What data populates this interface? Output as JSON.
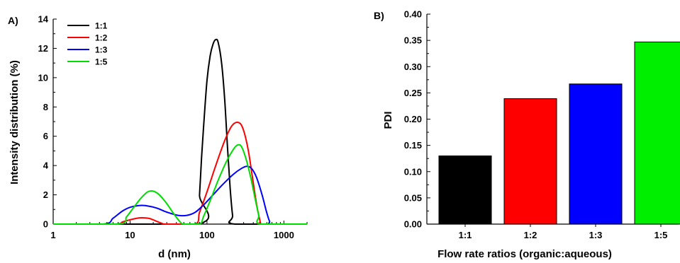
{
  "chart_data": [
    {
      "panel_label": "A)",
      "type": "line",
      "xlabel": "d (nm)",
      "ylabel": "Intensity distribution (%)",
      "xscale": "log",
      "xlim": [
        1,
        2000
      ],
      "ylim": [
        0,
        14
      ],
      "x_ticks": [
        1,
        10,
        100,
        1000
      ],
      "x_tick_labels": [
        "1",
        "10",
        "100",
        "1000"
      ],
      "y_ticks": [
        0,
        2,
        4,
        6,
        8,
        10,
        12,
        14
      ],
      "y_tick_labels": [
        "0",
        "2",
        "4",
        "6",
        "8",
        "10",
        "12",
        "14"
      ],
      "legend_position": "top-left",
      "series": [
        {
          "name": "1:1",
          "color": "#000000",
          "points": [
            [
              1,
              0
            ],
            [
              75,
              0
            ],
            [
              80,
              2.0
            ],
            [
              85,
              4.5
            ],
            [
              90,
              6.5
            ],
            [
              100,
              9.8
            ],
            [
              110,
              11.5
            ],
            [
              120,
              12.3
            ],
            [
              130,
              12.6
            ],
            [
              140,
              12.4
            ],
            [
              155,
              11.0
            ],
            [
              170,
              8.5
            ],
            [
              185,
              5.2
            ],
            [
              200,
              2.5
            ],
            [
              215,
              0.6
            ],
            [
              230,
              0
            ],
            [
              2000,
              0
            ]
          ]
        },
        {
          "name": "1:2",
          "color": "#ff0000",
          "points": [
            [
              1,
              0
            ],
            [
              6,
              0
            ],
            [
              8,
              0.15
            ],
            [
              10,
              0.3
            ],
            [
              13,
              0.42
            ],
            [
              15,
              0.43
            ],
            [
              18,
              0.38
            ],
            [
              22,
              0.2
            ],
            [
              26,
              0.05
            ],
            [
              30,
              0
            ],
            [
              70,
              0
            ],
            [
              80,
              0.8
            ],
            [
              100,
              2.2
            ],
            [
              130,
              4.0
            ],
            [
              170,
              5.7
            ],
            [
              210,
              6.7
            ],
            [
              250,
              6.95
            ],
            [
              290,
              6.6
            ],
            [
              340,
              5.2
            ],
            [
              390,
              3.2
            ],
            [
              440,
              1.4
            ],
            [
              490,
              0.2
            ],
            [
              510,
              0
            ],
            [
              2000,
              0
            ]
          ]
        },
        {
          "name": "1:3",
          "color": "#0000ff",
          "points": [
            [
              1,
              0
            ],
            [
              4.5,
              0
            ],
            [
              6,
              0.4
            ],
            [
              8,
              0.9
            ],
            [
              10,
              1.15
            ],
            [
              13,
              1.27
            ],
            [
              16,
              1.26
            ],
            [
              22,
              1.1
            ],
            [
              30,
              0.82
            ],
            [
              42,
              0.6
            ],
            [
              55,
              0.6
            ],
            [
              70,
              0.8
            ],
            [
              90,
              1.3
            ],
            [
              120,
              2.0
            ],
            [
              160,
              2.7
            ],
            [
              220,
              3.4
            ],
            [
              280,
              3.8
            ],
            [
              330,
              3.95
            ],
            [
              380,
              3.8
            ],
            [
              440,
              3.2
            ],
            [
              520,
              2.0
            ],
            [
              590,
              0.9
            ],
            [
              650,
              0.2
            ],
            [
              700,
              0
            ],
            [
              2000,
              0
            ]
          ]
        },
        {
          "name": "1:5",
          "color": "#00dd00",
          "points": [
            [
              1,
              0
            ],
            [
              7,
              0
            ],
            [
              9,
              0.5
            ],
            [
              11,
              1.1
            ],
            [
              14,
              1.8
            ],
            [
              17,
              2.2
            ],
            [
              20,
              2.25
            ],
            [
              24,
              2.0
            ],
            [
              30,
              1.4
            ],
            [
              37,
              0.7
            ],
            [
              44,
              0.2
            ],
            [
              50,
              0
            ],
            [
              80,
              0
            ],
            [
              90,
              0.5
            ],
            [
              110,
              1.6
            ],
            [
              140,
              3.0
            ],
            [
              180,
              4.3
            ],
            [
              220,
              5.1
            ],
            [
              250,
              5.4
            ],
            [
              280,
              5.3
            ],
            [
              320,
              4.5
            ],
            [
              370,
              3.2
            ],
            [
              420,
              1.8
            ],
            [
              470,
              0.6
            ],
            [
              500,
              0
            ],
            [
              2000,
              0
            ]
          ]
        }
      ]
    },
    {
      "panel_label": "B)",
      "type": "bar",
      "xlabel": "Flow rate ratios (organic:aqueous)",
      "ylabel": "PDI",
      "ylim": [
        0,
        0.4
      ],
      "y_ticks": [
        0,
        0.05,
        0.1,
        0.15,
        0.2,
        0.25,
        0.3,
        0.35,
        0.4
      ],
      "y_tick_labels": [
        "0.00",
        "0.05",
        "0.10",
        "0.15",
        "0.20",
        "0.25",
        "0.30",
        "0.35",
        "0.40"
      ],
      "categories": [
        "1:1",
        "1:2",
        "1:3",
        "1:5"
      ],
      "values": [
        0.13,
        0.239,
        0.267,
        0.347
      ],
      "colors": [
        "#000000",
        "#ff0000",
        "#0000ff",
        "#00ee00"
      ]
    }
  ]
}
